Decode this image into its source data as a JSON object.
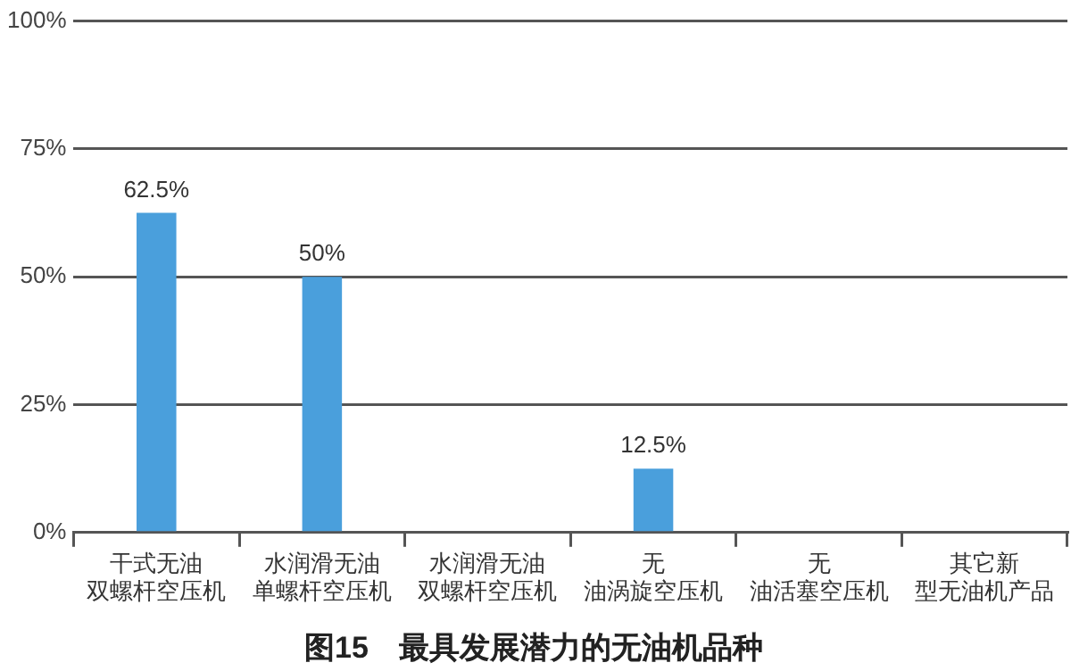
{
  "chart_data": {
    "type": "bar",
    "title": "图15　最具发展潜力的无油机品种",
    "categories": [
      "干式无油双螺杆空压机",
      "水润滑无油单螺杆空压机",
      "水润滑无油双螺杆空压机",
      "无油涡旋空压机",
      "无油活塞空压机",
      "其它新型无油机产品"
    ],
    "values": [
      62.5,
      50,
      0,
      12.5,
      0,
      0
    ],
    "color": "#4a9fdc",
    "value_labels": [
      "62.5%",
      "50%",
      null,
      "12.5%",
      null,
      null
    ],
    "ylim": [
      0,
      100
    ],
    "yticks": [
      {
        "value": 0,
        "label": "0%"
      },
      {
        "value": 25,
        "label": "25%"
      },
      {
        "value": 50,
        "label": "50%"
      },
      {
        "value": 75,
        "label": "75%"
      },
      {
        "value": 100,
        "label": "100%"
      }
    ],
    "grid": "y",
    "legend": false
  }
}
